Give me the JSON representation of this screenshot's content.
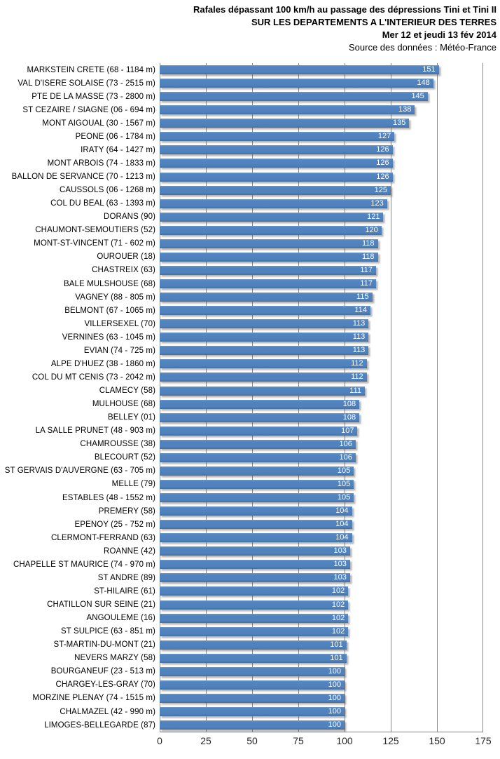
{
  "header": {
    "title_line1": "Rafales dépassant 100 km/h au passage des dépressions Tini et Tini II",
    "title_line2": "SUR LES DEPARTEMENTS  A L'INTERIEUR  DES TERRES",
    "title_line3": "Mer 12 et jeudi 13 fév 2014",
    "source": "Source des données : Météo-France"
  },
  "chart_data": {
    "type": "bar",
    "orientation": "horizontal",
    "title": "Rafales dépassant 100 km/h au passage des dépressions Tini et Tini II",
    "subtitle": "SUR LES DEPARTEMENTS A L'INTERIEUR DES TERRES",
    "date": "Mer 12 et jeudi 13 fév 2014",
    "source": "Source des données : Météo-France",
    "unit": "km/h",
    "xlim": [
      0,
      175
    ],
    "x_ticks": [
      0,
      25,
      50,
      75,
      100,
      125,
      150,
      175
    ],
    "grid": true,
    "bar_color": "#4F81BD",
    "gridline_color": "#898989",
    "value_label_color": "#FFFFFF",
    "value_label_position": "inside-end",
    "categories": [
      "MARKSTEIN CRETE (68 - 1184 m)",
      "VAL D'ISERE SOLAISE (73 - 2515 m)",
      "PTE DE LA MASSE (73 - 2800 m)",
      "ST CEZAIRE / SIAGNE (06 - 694 m)",
      "MONT AIGOUAL (30 - 1567 m)",
      "PEONE (06 - 1784 m)",
      "IRATY (64 - 1427 m)",
      "MONT ARBOIS (74 - 1833 m)",
      "BALLON DE SERVANCE (70 - 1213 m)",
      "CAUSSOLS (06 - 1268 m)",
      "COL DU BEAL (63 - 1393 m)",
      "DORANS (90)",
      "CHAUMONT-SEMOUTIERS (52)",
      "MONT-ST-VINCENT (71 - 602 m)",
      "OUROUER (18)",
      "CHASTREIX (63)",
      "BALE MULSHOUSE (68)",
      "VAGNEY (88 - 805 m)",
      "BELMONT (67 - 1065 m)",
      "VILLERSEXEL (70)",
      "VERNINES (63 - 1045 m)",
      "EVIAN (74 - 725 m)",
      "ALPE D'HUEZ (38 - 1860 m)",
      "COL DU MT CENIS (73 - 2042 m)",
      "CLAMECY (58)",
      "MULHOUSE (68)",
      "BELLEY (01)",
      "LA SALLE PRUNET (48 - 903 m)",
      "CHAMROUSSE (38)",
      "BLECOURT (52)",
      "ST GERVAIS D'AUVERGNE (63 - 705 m)",
      "MELLE (79)",
      "ESTABLES (48 - 1552 m)",
      "PREMERY (58)",
      "EPENOY (25 - 752 m)",
      "CLERMONT-FERRAND (63)",
      "ROANNE (42)",
      "CHAPELLE ST MAURICE (74 - 970 m)",
      "ST ANDRE (89)",
      "ST-HILAIRE (61)",
      "CHATILLON SUR SEINE (21)",
      "ANGOULEME (16)",
      "ST SULPICE (63 - 851 m)",
      "ST-MARTIN-DU-MONT (21)",
      "NEVERS MARZY (58)",
      "BOURGANEUF (23 - 513 m)",
      "CHARGEY-LES-GRAY (70)",
      "MORZINE PLENAY (74 - 1515 m)",
      "CHALMAZEL (42 - 990 m)",
      "LIMOGES-BELLEGARDE (87)"
    ],
    "values": [
      151,
      148,
      145,
      138,
      135,
      127,
      126,
      126,
      126,
      125,
      123,
      121,
      120,
      118,
      118,
      117,
      117,
      115,
      114,
      113,
      113,
      113,
      112,
      112,
      111,
      108,
      108,
      107,
      106,
      106,
      105,
      105,
      105,
      104,
      104,
      104,
      103,
      103,
      103,
      102,
      102,
      102,
      102,
      101,
      101,
      100,
      100,
      100,
      100,
      100
    ]
  }
}
